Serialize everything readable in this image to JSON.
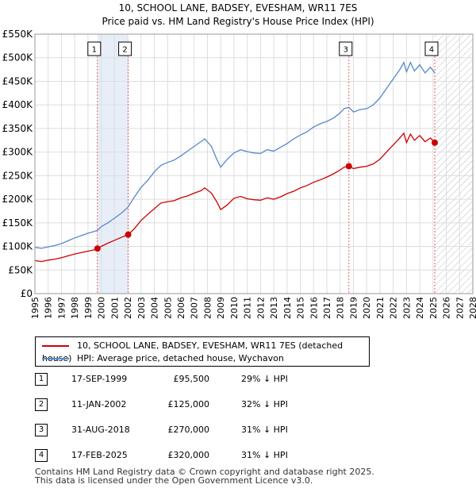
{
  "chart_data": {
    "type": "line",
    "title": "10, SCHOOL LANE, BADSEY, EVESHAM, WR11 7ES",
    "subtitle": "Price paid vs. HM Land Registry's House Price Index (HPI)",
    "xlabel": "",
    "ylabel": "",
    "xlim": [
      1995,
      2028
    ],
    "ylim": [
      0,
      550000
    ],
    "x_ticks": [
      1995,
      1996,
      1997,
      1998,
      1999,
      2000,
      2001,
      2002,
      2003,
      2004,
      2005,
      2006,
      2007,
      2008,
      2009,
      2010,
      2011,
      2012,
      2013,
      2014,
      2015,
      2016,
      2017,
      2018,
      2019,
      2020,
      2021,
      2022,
      2023,
      2024,
      2025,
      2026,
      2027,
      2028
    ],
    "y_ticks": [
      {
        "value": 0,
        "label": "£0"
      },
      {
        "value": 50000,
        "label": "£50K"
      },
      {
        "value": 100000,
        "label": "£100K"
      },
      {
        "value": 150000,
        "label": "£150K"
      },
      {
        "value": 200000,
        "label": "£200K"
      },
      {
        "value": 250000,
        "label": "£250K"
      },
      {
        "value": 300000,
        "label": "£300K"
      },
      {
        "value": 350000,
        "label": "£350K"
      },
      {
        "value": 400000,
        "label": "£400K"
      },
      {
        "value": 450000,
        "label": "£450K"
      },
      {
        "value": 500000,
        "label": "£500K"
      },
      {
        "value": 550000,
        "label": "£550K"
      }
    ],
    "grid": true,
    "shaded_ranges": [
      [
        1999.71,
        2002.03
      ]
    ],
    "future_hatch_start": 2025.13,
    "series": [
      {
        "name": "10, SCHOOL LANE, BADSEY, EVESHAM, WR11 7ES (detached house)",
        "color": "#cc0000",
        "points": [
          [
            1995.0,
            70000
          ],
          [
            1995.5,
            68000
          ],
          [
            1996.0,
            71000
          ],
          [
            1996.5,
            73000
          ],
          [
            1997.0,
            76000
          ],
          [
            1997.5,
            80000
          ],
          [
            1998.0,
            84000
          ],
          [
            1998.5,
            87000
          ],
          [
            1999.0,
            90000
          ],
          [
            1999.5,
            93000
          ],
          [
            1999.71,
            95500
          ],
          [
            2000.0,
            100000
          ],
          [
            2000.5,
            107000
          ],
          [
            2001.0,
            113000
          ],
          [
            2001.5,
            119000
          ],
          [
            2002.03,
            125000
          ],
          [
            2002.5,
            138000
          ],
          [
            2003.0,
            155000
          ],
          [
            2003.5,
            168000
          ],
          [
            2004.0,
            180000
          ],
          [
            2004.5,
            192000
          ],
          [
            2005.0,
            195000
          ],
          [
            2005.5,
            197000
          ],
          [
            2006.0,
            203000
          ],
          [
            2006.5,
            207000
          ],
          [
            2007.0,
            213000
          ],
          [
            2007.5,
            218000
          ],
          [
            2007.8,
            224000
          ],
          [
            2008.3,
            213000
          ],
          [
            2008.7,
            195000
          ],
          [
            2009.0,
            178000
          ],
          [
            2009.5,
            188000
          ],
          [
            2010.0,
            202000
          ],
          [
            2010.5,
            206000
          ],
          [
            2011.0,
            201000
          ],
          [
            2011.5,
            199000
          ],
          [
            2012.0,
            198000
          ],
          [
            2012.5,
            203000
          ],
          [
            2013.0,
            200000
          ],
          [
            2013.5,
            205000
          ],
          [
            2014.0,
            212000
          ],
          [
            2014.5,
            217000
          ],
          [
            2015.0,
            224000
          ],
          [
            2015.5,
            229000
          ],
          [
            2016.0,
            236000
          ],
          [
            2016.5,
            241000
          ],
          [
            2017.0,
            247000
          ],
          [
            2017.5,
            254000
          ],
          [
            2018.0,
            262000
          ],
          [
            2018.3,
            268000
          ],
          [
            2018.66,
            270000
          ],
          [
            2019.0,
            265000
          ],
          [
            2019.5,
            268000
          ],
          [
            2020.0,
            270000
          ],
          [
            2020.5,
            275000
          ],
          [
            2021.0,
            285000
          ],
          [
            2021.5,
            300000
          ],
          [
            2022.0,
            315000
          ],
          [
            2022.5,
            330000
          ],
          [
            2022.8,
            340000
          ],
          [
            2023.0,
            320000
          ],
          [
            2023.3,
            338000
          ],
          [
            2023.6,
            325000
          ],
          [
            2024.0,
            335000
          ],
          [
            2024.4,
            322000
          ],
          [
            2024.8,
            330000
          ],
          [
            2025.13,
            320000
          ]
        ],
        "sales": [
          {
            "x": 1999.71,
            "value": 95500
          },
          {
            "x": 2002.03,
            "value": 125000
          },
          {
            "x": 2018.66,
            "value": 270000
          },
          {
            "x": 2025.13,
            "value": 320000
          }
        ]
      },
      {
        "name": "HPI: Average price, detached house, Wychavon",
        "color": "#5588cc",
        "points": [
          [
            1995.0,
            98000
          ],
          [
            1995.5,
            96000
          ],
          [
            1996.0,
            99000
          ],
          [
            1996.5,
            102000
          ],
          [
            1997.0,
            106000
          ],
          [
            1997.5,
            112000
          ],
          [
            1998.0,
            118000
          ],
          [
            1998.5,
            123000
          ],
          [
            1999.0,
            128000
          ],
          [
            1999.5,
            132000
          ],
          [
            1999.71,
            134000
          ],
          [
            2000.0,
            142000
          ],
          [
            2000.5,
            150000
          ],
          [
            2001.0,
            160000
          ],
          [
            2001.5,
            170000
          ],
          [
            2002.0,
            183000
          ],
          [
            2002.5,
            205000
          ],
          [
            2003.0,
            225000
          ],
          [
            2003.5,
            240000
          ],
          [
            2004.0,
            258000
          ],
          [
            2004.5,
            272000
          ],
          [
            2005.0,
            278000
          ],
          [
            2005.5,
            283000
          ],
          [
            2006.0,
            292000
          ],
          [
            2006.5,
            302000
          ],
          [
            2007.0,
            312000
          ],
          [
            2007.5,
            322000
          ],
          [
            2007.8,
            328000
          ],
          [
            2008.3,
            312000
          ],
          [
            2008.7,
            285000
          ],
          [
            2009.0,
            268000
          ],
          [
            2009.5,
            285000
          ],
          [
            2010.0,
            298000
          ],
          [
            2010.5,
            305000
          ],
          [
            2011.0,
            301000
          ],
          [
            2011.5,
            298000
          ],
          [
            2012.0,
            297000
          ],
          [
            2012.5,
            305000
          ],
          [
            2013.0,
            302000
          ],
          [
            2013.5,
            310000
          ],
          [
            2014.0,
            318000
          ],
          [
            2014.5,
            328000
          ],
          [
            2015.0,
            336000
          ],
          [
            2015.5,
            343000
          ],
          [
            2016.0,
            353000
          ],
          [
            2016.5,
            360000
          ],
          [
            2017.0,
            365000
          ],
          [
            2017.5,
            372000
          ],
          [
            2018.0,
            383000
          ],
          [
            2018.3,
            392000
          ],
          [
            2018.66,
            395000
          ],
          [
            2019.0,
            385000
          ],
          [
            2019.5,
            390000
          ],
          [
            2020.0,
            392000
          ],
          [
            2020.5,
            400000
          ],
          [
            2021.0,
            415000
          ],
          [
            2021.5,
            435000
          ],
          [
            2022.0,
            455000
          ],
          [
            2022.5,
            475000
          ],
          [
            2022.8,
            490000
          ],
          [
            2023.0,
            470000
          ],
          [
            2023.3,
            490000
          ],
          [
            2023.6,
            472000
          ],
          [
            2024.0,
            485000
          ],
          [
            2024.4,
            468000
          ],
          [
            2024.8,
            480000
          ],
          [
            2025.13,
            468000
          ]
        ]
      }
    ],
    "annotations": [
      {
        "label": "1",
        "x": 1999.71
      },
      {
        "label": "2",
        "x": 2002.03
      },
      {
        "label": "3",
        "x": 2018.66
      },
      {
        "label": "4",
        "x": 2025.13
      }
    ],
    "legend_position": "below"
  },
  "legend": {
    "red_label": "10, SCHOOL LANE, BADSEY, EVESHAM, WR11 7ES (detached house)",
    "blue_label": "HPI: Average price, detached house, Wychavon",
    "red_color": "#cc0000",
    "blue_color": "#5588cc"
  },
  "transactions": [
    {
      "num": "1",
      "date": "17-SEP-1999",
      "price": "£95,500",
      "hpi": "29% ↓ HPI"
    },
    {
      "num": "2",
      "date": "11-JAN-2002",
      "price": "£125,000",
      "hpi": "32% ↓ HPI"
    },
    {
      "num": "3",
      "date": "31-AUG-2018",
      "price": "£270,000",
      "hpi": "31% ↓ HPI"
    },
    {
      "num": "4",
      "date": "17-FEB-2025",
      "price": "£320,000",
      "hpi": "31% ↓ HPI"
    }
  ],
  "footer": {
    "line1": "Contains HM Land Registry data © Crown copyright and database right 2025.",
    "line2": "This data is licensed under the Open Government Licence v3.0."
  }
}
